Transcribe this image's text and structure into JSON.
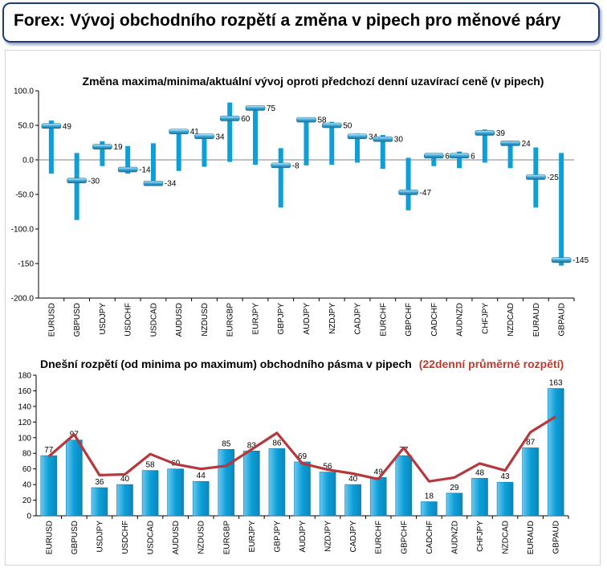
{
  "header": {
    "title": "Forex: Vývoj obchodního rozpětí a změna v pipech pro měnové páry"
  },
  "colors": {
    "bar": "#0d9fd8",
    "bar_light": "#8fd6f4",
    "line": "#b5383c",
    "marker": "#3aa8d8",
    "title_red": "#c0392b",
    "header_border": "#1c3d78"
  },
  "chart_data": [
    {
      "type": "bar",
      "subtype": "range-with-current",
      "title": "Změna maxima/minima/aktuální vývoj oproti předchozí denní uzavírací ceně (v pipech)",
      "ylim": [
        -200,
        100
      ],
      "yticks": [
        "100.0",
        "50.0",
        "0.0",
        "-50.0",
        "-100.0",
        "-150",
        "-200.0"
      ],
      "categories": [
        "EURUSD",
        "GBPUSD",
        "USDJPY",
        "USDCHF",
        "USDCAD",
        "AUDUSD",
        "NZDUSD",
        "EURGBP",
        "EURJPY",
        "GBPJPY",
        "AUDJPY",
        "NZDJPY",
        "CADJPY",
        "EURCHF",
        "GBPCHF",
        "CADCHF",
        "AUDNZD",
        "CHFJPY",
        "NZDCAD",
        "EURAUD",
        "GBPAUD"
      ],
      "high": [
        57,
        10,
        27,
        20,
        24,
        42,
        36,
        83,
        78,
        17,
        61,
        55,
        38,
        36,
        3,
        9,
        12,
        44,
        28,
        18,
        10
      ],
      "low": [
        -20,
        -87,
        -9,
        -20,
        -37,
        -16,
        -10,
        -3,
        -7,
        -69,
        -8,
        -7,
        -4,
        -13,
        -73,
        -9,
        -12,
        -4,
        -12,
        -69,
        -153
      ],
      "current": [
        49,
        -30,
        19,
        -14,
        -34,
        41,
        34,
        60,
        75,
        -8,
        58,
        50,
        34,
        30,
        -47,
        6,
        6,
        39,
        24,
        -25,
        -145
      ],
      "labels": [
        "49",
        "-30",
        "19",
        "-14",
        "-34",
        "41",
        "34",
        "60",
        "75",
        "-8",
        "58",
        "50",
        "34",
        "30",
        "-47",
        "6",
        "6",
        "39",
        "24",
        "-25",
        "-145"
      ],
      "grid": false,
      "legend": "none"
    },
    {
      "type": "bar",
      "subtype": "bar-with-line",
      "title": "Dnešní rozpětí (od minima po maximum) obchodního pásma v pipech",
      "title_highlight": "(22denní průměrné rozpětí)",
      "ylim": [
        0,
        180
      ],
      "yticks": [
        "180",
        "160",
        "140",
        "120",
        "100",
        "80",
        "60",
        "40",
        "20",
        "0"
      ],
      "categories": [
        "EURUSD",
        "GBPUSD",
        "USDJPY",
        "USDCHF",
        "USDCAD",
        "AUDUSD",
        "NZDUSD",
        "EURGBP",
        "EURJPY",
        "GBPJPY",
        "AUDJPY",
        "NZDJPY",
        "CADJPY",
        "EURCHF",
        "GBPCHF",
        "CADCHF",
        "AUDNZD",
        "CHFJPY",
        "NZDCAD",
        "EURAUD",
        "GBPAUD"
      ],
      "series": [
        {
          "values": [
            77,
            97,
            36,
            40,
            58,
            60,
            44,
            85,
            83,
            86,
            69,
            56,
            40,
            49,
            77,
            18,
            29,
            48,
            43,
            87,
            163
          ]
        },
        {
          "values": [
            76,
            104,
            52,
            53,
            79,
            66,
            60,
            64,
            85,
            106,
            67,
            59,
            54,
            47,
            87,
            44,
            49,
            67,
            58,
            107,
            127
          ]
        }
      ],
      "labels": [
        "77",
        "97",
        "36",
        "40",
        "58",
        "60",
        "44",
        "85",
        "83",
        "86",
        "69",
        "56",
        "40",
        "49",
        "77",
        "18",
        "29",
        "48",
        "43",
        "87",
        "163"
      ],
      "grid": false,
      "legend": "none"
    }
  ]
}
